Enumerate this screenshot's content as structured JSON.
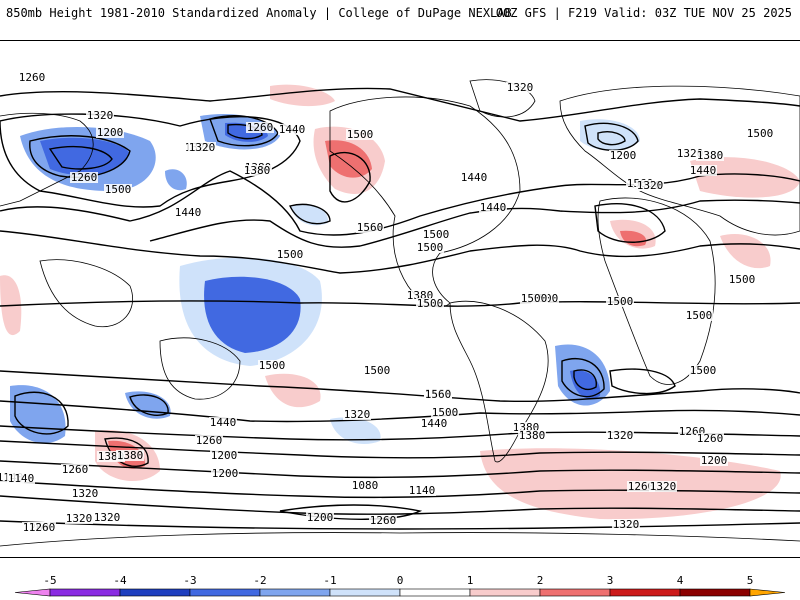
{
  "header": {
    "left": "850mb Height 1981-2010 Standardized Anomaly | College of DuPage NEXLAB",
    "right": "00Z GFS | F219 Valid: 03Z TUE NOV 25 2025"
  },
  "map": {
    "projection": "global-equirectangular",
    "contour_unit": "m",
    "contour_labels": [
      "1260",
      "1320",
      "1200",
      "1320",
      "1260",
      "1500",
      "1380",
      "1320",
      "1440",
      "1320",
      "1260",
      "1380",
      "1440",
      "1500",
      "1560",
      "1500",
      "1440",
      "1500",
      "1560",
      "1500",
      "1380",
      "1440",
      "1500",
      "1560",
      "1500",
      "1320",
      "1200",
      "1320",
      "1380",
      "1440",
      "1500",
      "1500",
      "1500",
      "1500",
      "1500",
      "1500",
      "1500",
      "1560",
      "1500",
      "1440",
      "1380",
      "1320",
      "1260",
      "1200",
      "1260",
      "1380",
      "1320",
      "1260",
      "1200",
      "1140",
      "1080",
      "1140",
      "1200",
      "1260",
      "1320",
      "1320",
      "1440",
      "1500",
      "1380",
      "1380",
      "1320",
      "1260",
      "1200",
      "1260",
      "1320",
      "1140",
      "1260",
      "1320",
      "1260",
      "1500"
    ],
    "colors": {
      "ocean": "#ffffff",
      "coastline": "#000000",
      "contour": "#000000"
    }
  },
  "colorbar": {
    "ticks": [
      "-5",
      "-4",
      "-3",
      "-2",
      "-1",
      "0",
      "1",
      "2",
      "3",
      "4",
      "5"
    ],
    "bins": [
      {
        "from": -5.5,
        "to": -5,
        "color": "#ee82ee"
      },
      {
        "from": -5,
        "to": -4,
        "color": "#8a2be2"
      },
      {
        "from": -4,
        "to": -3,
        "color": "#1e3fbf"
      },
      {
        "from": -3,
        "to": -2,
        "color": "#4169e1"
      },
      {
        "from": -2,
        "to": -1,
        "color": "#7fa5ee"
      },
      {
        "from": -1,
        "to": 0,
        "color": "#cfe2fa"
      },
      {
        "from": 0,
        "to": 1,
        "color": "#ffffff"
      },
      {
        "from": 1,
        "to": 2,
        "color": "#f8cccc"
      },
      {
        "from": 2,
        "to": 3,
        "color": "#ee7070"
      },
      {
        "from": 3,
        "to": 4,
        "color": "#cc1a1a"
      },
      {
        "from": 4,
        "to": 5,
        "color": "#8b0000"
      },
      {
        "from": 5,
        "to": 5.5,
        "color": "#ffa500"
      }
    ]
  }
}
